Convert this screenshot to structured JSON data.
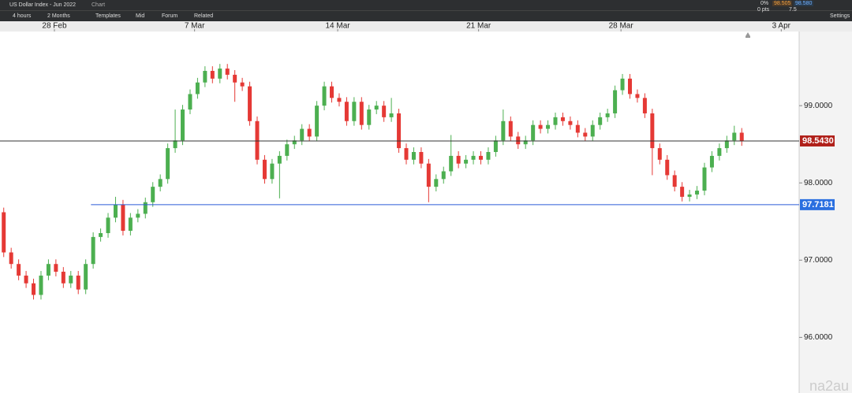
{
  "toolbar": {
    "instrument": "US Dollar Index - Jun 2022",
    "tab": "Chart",
    "interval": "4 hours",
    "range": "2 Months",
    "templates": "Templates",
    "price_mode": "Mid",
    "forum": "Forum",
    "related": "Related",
    "change_pct": "0%",
    "change_pts": "0 pts",
    "bid": "98.505",
    "ask": "98.580",
    "spread": "7.5",
    "settings": "Settings"
  },
  "watermark": "na2au",
  "chart_data": {
    "type": "candlestick",
    "x": [
      0,
      1,
      2,
      3,
      4,
      5,
      6,
      7,
      8,
      9,
      10,
      11,
      12,
      13,
      14,
      15,
      16,
      17,
      18,
      19,
      20,
      21,
      22,
      23,
      24,
      25,
      26,
      27,
      28,
      29,
      30,
      31,
      32,
      33,
      34,
      35,
      36,
      37,
      38,
      39,
      40,
      41,
      42,
      43,
      44,
      45,
      46,
      47,
      48,
      49,
      50,
      51,
      52,
      53,
      54,
      55,
      56,
      57,
      58,
      59,
      60,
      61,
      62,
      63,
      64,
      65,
      66,
      67,
      68,
      69,
      70,
      71,
      72,
      73,
      74,
      75,
      76,
      77,
      78,
      79,
      80,
      81,
      82,
      83,
      84,
      85,
      86,
      87,
      88,
      89,
      90,
      91,
      92,
      93,
      94,
      95,
      96,
      97,
      98,
      99
    ],
    "open": [
      97.62,
      97.1,
      96.95,
      96.8,
      96.7,
      96.55,
      96.8,
      96.95,
      96.85,
      96.7,
      96.8,
      96.62,
      96.95,
      97.3,
      97.35,
      97.55,
      97.72,
      97.38,
      97.55,
      97.6,
      97.75,
      97.95,
      98.05,
      98.45,
      98.55,
      98.95,
      99.15,
      99.3,
      99.45,
      99.35,
      99.48,
      99.4,
      99.3,
      99.25,
      98.8,
      98.3,
      98.05,
      98.25,
      98.35,
      98.5,
      98.55,
      98.7,
      98.6,
      99.0,
      99.25,
      99.1,
      99.05,
      98.8,
      99.05,
      98.75,
      98.95,
      99.0,
      98.85,
      98.9,
      98.45,
      98.3,
      98.4,
      98.25,
      97.95,
      98.05,
      98.15,
      98.35,
      98.25,
      98.3,
      98.35,
      98.3,
      98.4,
      98.55,
      98.8,
      98.6,
      98.5,
      98.55,
      98.75,
      98.7,
      98.75,
      98.85,
      98.8,
      98.75,
      98.65,
      98.6,
      98.75,
      98.85,
      98.9,
      99.2,
      99.35,
      99.15,
      99.1,
      98.9,
      98.45,
      98.3,
      98.1,
      97.95,
      97.82,
      97.85,
      97.9,
      98.2,
      98.35,
      98.45,
      98.55,
      98.65
    ],
    "high": [
      97.68,
      97.16,
      97.01,
      96.86,
      96.76,
      96.86,
      97.01,
      97.01,
      96.91,
      96.86,
      96.86,
      97.01,
      97.36,
      97.41,
      97.61,
      97.82,
      97.78,
      97.61,
      97.66,
      97.81,
      98.01,
      98.11,
      98.51,
      98.95,
      99.01,
      99.21,
      99.36,
      99.51,
      99.51,
      99.54,
      99.54,
      99.46,
      99.36,
      99.31,
      98.86,
      98.36,
      98.31,
      98.41,
      98.56,
      98.61,
      98.76,
      98.76,
      99.06,
      99.31,
      99.31,
      99.16,
      99.11,
      99.11,
      99.11,
      99.01,
      99.06,
      99.06,
      99.1,
      98.96,
      98.51,
      98.46,
      98.46,
      98.31,
      98.11,
      98.21,
      98.62,
      98.41,
      98.36,
      98.41,
      98.41,
      98.46,
      98.61,
      98.95,
      98.86,
      98.66,
      98.61,
      98.81,
      98.81,
      98.81,
      98.91,
      98.91,
      98.86,
      98.81,
      98.71,
      98.81,
      98.91,
      98.96,
      99.26,
      99.41,
      99.41,
      99.21,
      99.16,
      98.96,
      98.51,
      98.36,
      98.16,
      98.01,
      97.91,
      97.96,
      98.26,
      98.41,
      98.51,
      98.61,
      98.74,
      98.71
    ],
    "low": [
      97.04,
      96.89,
      96.74,
      96.64,
      96.49,
      96.49,
      96.74,
      96.79,
      96.64,
      96.64,
      96.56,
      96.56,
      96.89,
      97.24,
      97.29,
      97.49,
      97.32,
      97.32,
      97.49,
      97.54,
      97.69,
      97.89,
      97.99,
      98.39,
      98.49,
      98.89,
      99.09,
      99.24,
      99.29,
      99.29,
      99.34,
      99.05,
      99.19,
      98.74,
      98.24,
      97.99,
      97.99,
      97.8,
      98.29,
      98.44,
      98.49,
      98.54,
      98.54,
      98.94,
      99.04,
      98.99,
      98.74,
      98.74,
      98.69,
      98.69,
      98.89,
      98.79,
      98.79,
      98.39,
      98.24,
      98.24,
      98.19,
      97.75,
      97.89,
      97.99,
      98.09,
      98.19,
      98.19,
      98.24,
      98.24,
      98.24,
      98.34,
      98.49,
      98.54,
      98.44,
      98.44,
      98.49,
      98.64,
      98.64,
      98.69,
      98.74,
      98.69,
      98.59,
      98.54,
      98.54,
      98.69,
      98.79,
      98.84,
      99.14,
      99.09,
      99.04,
      98.84,
      98.1,
      98.24,
      98.04,
      97.89,
      97.76,
      97.76,
      97.79,
      97.84,
      98.14,
      98.29,
      98.39,
      98.49,
      98.48
    ],
    "close": [
      97.1,
      96.95,
      96.8,
      96.7,
      96.55,
      96.8,
      96.95,
      96.85,
      96.7,
      96.8,
      96.62,
      96.95,
      97.3,
      97.35,
      97.55,
      97.72,
      97.38,
      97.55,
      97.6,
      97.75,
      97.95,
      98.05,
      98.45,
      98.55,
      98.95,
      99.15,
      99.3,
      99.45,
      99.35,
      99.48,
      99.4,
      99.3,
      99.25,
      98.8,
      98.3,
      98.05,
      98.25,
      98.35,
      98.5,
      98.55,
      98.7,
      98.6,
      99.0,
      99.25,
      99.1,
      99.05,
      98.8,
      99.05,
      98.75,
      98.95,
      99.0,
      98.85,
      98.9,
      98.45,
      98.3,
      98.4,
      98.25,
      97.95,
      98.05,
      98.15,
      98.35,
      98.25,
      98.3,
      98.35,
      98.3,
      98.4,
      98.55,
      98.8,
      98.6,
      98.5,
      98.55,
      98.75,
      98.7,
      98.75,
      98.85,
      98.8,
      98.75,
      98.65,
      98.6,
      98.75,
      98.85,
      98.9,
      99.2,
      99.35,
      99.15,
      99.1,
      98.9,
      98.45,
      98.3,
      98.1,
      97.95,
      97.82,
      97.85,
      97.9,
      98.2,
      98.35,
      98.45,
      98.55,
      98.65,
      98.54
    ],
    "up_color": "#4caf50",
    "down_color": "#e53935",
    "xlim": [
      -0.5,
      106.7
    ],
    "xticks": [
      {
        "value": 6.8,
        "label": "28 Feb"
      },
      {
        "value": 25.6,
        "label": "7 Mar"
      },
      {
        "value": 44.8,
        "label": "14 Mar"
      },
      {
        "value": 63.7,
        "label": "21 Mar"
      },
      {
        "value": 82.8,
        "label": "28 Mar"
      },
      {
        "value": 104.3,
        "label": "3 Apr"
      }
    ],
    "ylim": [
      95.28,
      99.96
    ],
    "yticks": [
      {
        "value": 96,
        "label": "96.0000"
      },
      {
        "value": 97,
        "label": "97.0000"
      },
      {
        "value": 98,
        "label": "98.0000"
      },
      {
        "value": 99,
        "label": "99.0000"
      }
    ],
    "hlines": [
      {
        "value": 98.543,
        "label": "98.5430",
        "color": "#333333",
        "label_color": "#b0201a",
        "x_start": -0.5
      },
      {
        "value": 97.7181,
        "label": "97.7181",
        "color": "#2a5bd7",
        "label_color": "#2a6fe0",
        "x_start": 11.7
      }
    ]
  }
}
